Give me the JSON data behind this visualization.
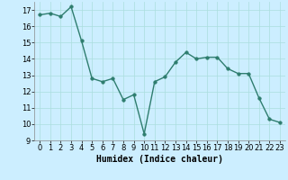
{
  "x": [
    0,
    1,
    2,
    3,
    4,
    5,
    6,
    7,
    8,
    9,
    10,
    11,
    12,
    13,
    14,
    15,
    16,
    17,
    18,
    19,
    20,
    21,
    22,
    23
  ],
  "y": [
    16.7,
    16.8,
    16.6,
    17.2,
    15.1,
    12.8,
    12.6,
    12.8,
    11.5,
    11.8,
    9.4,
    12.6,
    12.9,
    13.8,
    14.4,
    14.0,
    14.1,
    14.1,
    13.4,
    13.1,
    13.1,
    11.6,
    10.3,
    10.1
  ],
  "xlabel": "Humidex (Indice chaleur)",
  "ylim": [
    9,
    17.5
  ],
  "xlim": [
    -0.5,
    23.5
  ],
  "yticks": [
    9,
    10,
    11,
    12,
    13,
    14,
    15,
    16,
    17
  ],
  "xticks": [
    0,
    1,
    2,
    3,
    4,
    5,
    6,
    7,
    8,
    9,
    10,
    11,
    12,
    13,
    14,
    15,
    16,
    17,
    18,
    19,
    20,
    21,
    22,
    23
  ],
  "line_color": "#2e7d6e",
  "marker_size": 2.5,
  "bg_color": "#cceeff",
  "grid_color": "#aadddd",
  "xlabel_fontsize": 7,
  "tick_fontsize": 6
}
